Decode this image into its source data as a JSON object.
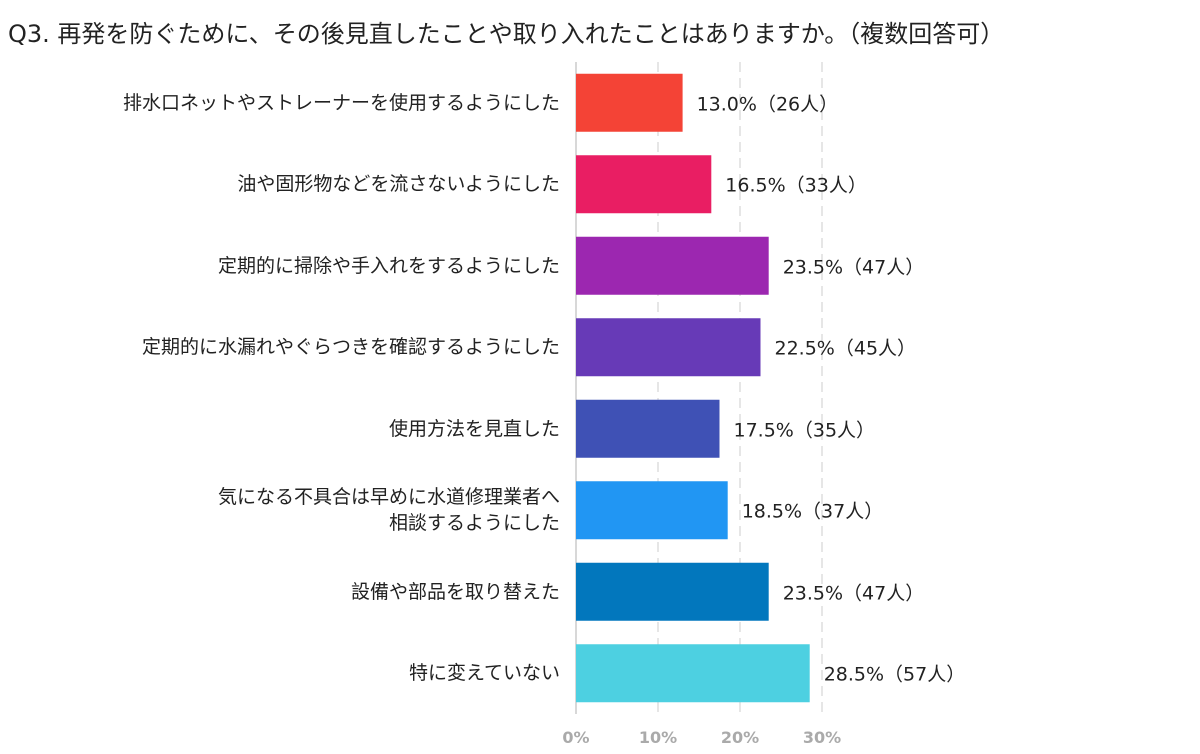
{
  "chart_data": {
    "type": "bar",
    "orientation": "horizontal",
    "title": "Q3. 再発を防ぐために、その後見直したことや取り入れたことはありますか。（複数回答可）",
    "categories": [
      "排水口ネットやストレーナーを使用するようにした",
      "油や固形物などを流さないようにした",
      "定期的に掃除や手入れをするようにした",
      "定期的に水漏れやぐらつきを確認するようにした",
      "使用方法を見直した",
      "気になる不具合は早めに水道修理業者へ\n相談するようにした",
      "設備や部品を取り替えた",
      "特に変えていない"
    ],
    "values": [
      13.0,
      16.5,
      23.5,
      22.5,
      17.5,
      18.5,
      23.5,
      28.5
    ],
    "value_labels": [
      "13.0%（26人）",
      "16.5%（33人）",
      "23.5%（47人）",
      "22.5%（45人）",
      "17.5%（35人）",
      "18.5%（37人）",
      "23.5%（47人）",
      "28.5%（57人）"
    ],
    "colors": [
      "#f44336",
      "#e91e63",
      "#9c27b0",
      "#673ab7",
      "#3f51b5",
      "#2196f3",
      "#0277bd",
      "#4dd0e1"
    ],
    "xlim": [
      0,
      33
    ],
    "xticks": [
      {
        "value": 0,
        "label": "0%"
      },
      {
        "value": 10,
        "label": "10%"
      },
      {
        "value": 20,
        "label": "20%"
      },
      {
        "value": 30,
        "label": "30%"
      }
    ],
    "grid": true
  }
}
